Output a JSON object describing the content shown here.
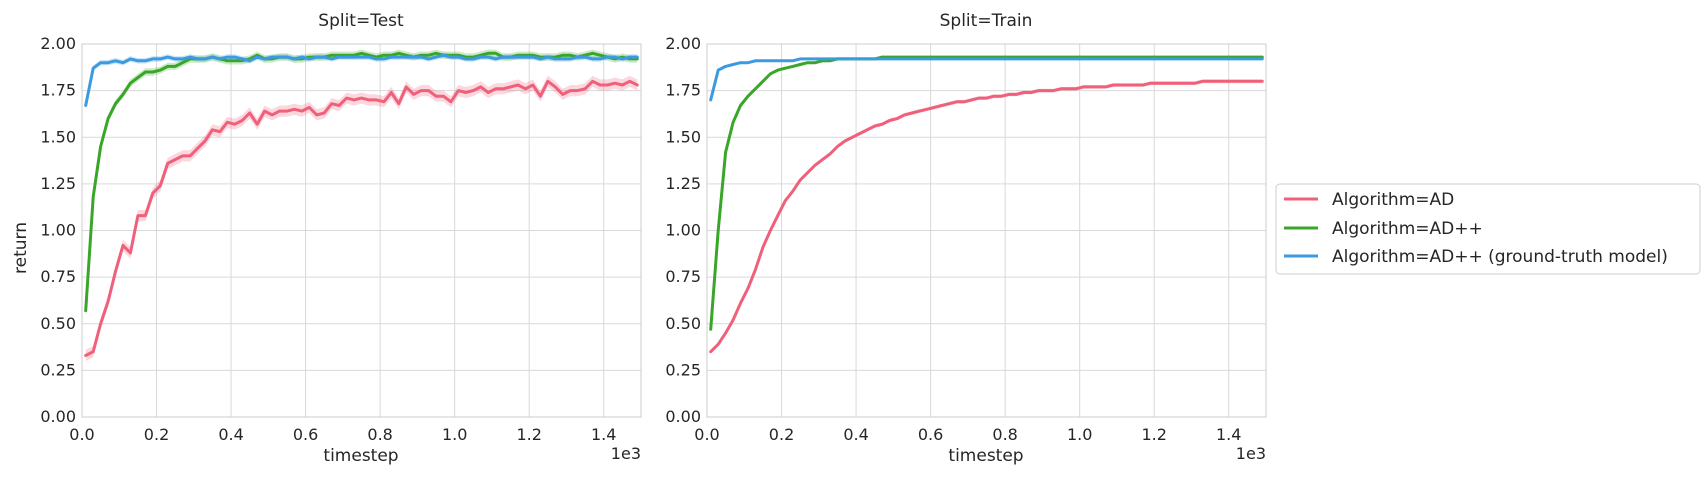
{
  "figure": {
    "ylabel": "return",
    "legend_position": "right",
    "legend": [
      {
        "label": "Algorithm=AD",
        "color": "#f0607a"
      },
      {
        "label": "Algorithm=AD++",
        "color": "#3aa629"
      },
      {
        "label": "Algorithm=AD++ (ground-truth model)",
        "color": "#3a9be0"
      }
    ]
  },
  "chart_data": [
    {
      "type": "line",
      "title": "Split=Test",
      "xlabel": "timestep",
      "x_scale_label": "1e3",
      "xlim": [
        0,
        1.5
      ],
      "ylim": [
        0,
        2.0
      ],
      "xticks": [
        "0.0",
        "0.2",
        "0.4",
        "0.6",
        "0.8",
        "1.0",
        "1.2",
        "1.4"
      ],
      "yticks": [
        "0.00",
        "0.25",
        "0.50",
        "0.75",
        "1.00",
        "1.25",
        "1.50",
        "1.75",
        "2.00"
      ],
      "grid": true,
      "series": [
        {
          "name": "Algorithm=AD",
          "color": "#f0607a",
          "x": [
            0.01,
            0.03,
            0.05,
            0.07,
            0.09,
            0.11,
            0.13,
            0.15,
            0.17,
            0.19,
            0.21,
            0.23,
            0.25,
            0.27,
            0.29,
            0.31,
            0.33,
            0.35,
            0.37,
            0.39,
            0.41,
            0.43,
            0.45,
            0.47,
            0.49,
            0.51,
            0.53,
            0.55,
            0.57,
            0.59,
            0.61,
            0.63,
            0.65,
            0.67,
            0.69,
            0.71,
            0.73,
            0.75,
            0.77,
            0.79,
            0.81,
            0.83,
            0.85,
            0.87,
            0.89,
            0.91,
            0.93,
            0.95,
            0.97,
            0.99,
            1.01,
            1.03,
            1.05,
            1.07,
            1.09,
            1.11,
            1.13,
            1.15,
            1.17,
            1.19,
            1.21,
            1.23,
            1.25,
            1.27,
            1.29,
            1.31,
            1.33,
            1.35,
            1.37,
            1.39,
            1.41,
            1.43,
            1.45,
            1.47,
            1.49
          ],
          "y": [
            0.33,
            0.35,
            0.5,
            0.62,
            0.78,
            0.92,
            0.88,
            1.08,
            1.08,
            1.2,
            1.24,
            1.36,
            1.38,
            1.4,
            1.4,
            1.44,
            1.48,
            1.54,
            1.53,
            1.58,
            1.57,
            1.59,
            1.63,
            1.57,
            1.64,
            1.62,
            1.64,
            1.64,
            1.65,
            1.64,
            1.66,
            1.62,
            1.63,
            1.68,
            1.67,
            1.71,
            1.7,
            1.71,
            1.7,
            1.7,
            1.69,
            1.74,
            1.68,
            1.77,
            1.73,
            1.75,
            1.75,
            1.72,
            1.72,
            1.69,
            1.75,
            1.74,
            1.75,
            1.77,
            1.74,
            1.76,
            1.76,
            1.77,
            1.78,
            1.76,
            1.78,
            1.72,
            1.8,
            1.77,
            1.73,
            1.75,
            1.75,
            1.76,
            1.8,
            1.78,
            1.78,
            1.79,
            1.78,
            1.8,
            1.78
          ],
          "band": 0.03
        },
        {
          "name": "Algorithm=AD++",
          "color": "#3aa629",
          "x": [
            0.01,
            0.03,
            0.05,
            0.07,
            0.09,
            0.11,
            0.13,
            0.15,
            0.17,
            0.19,
            0.21,
            0.23,
            0.25,
            0.27,
            0.29,
            0.31,
            0.33,
            0.35,
            0.37,
            0.39,
            0.41,
            0.43,
            0.45,
            0.47,
            0.49,
            0.51,
            0.53,
            0.55,
            0.57,
            0.59,
            0.61,
            0.63,
            0.65,
            0.67,
            0.69,
            0.71,
            0.73,
            0.75,
            0.77,
            0.79,
            0.81,
            0.83,
            0.85,
            0.87,
            0.89,
            0.91,
            0.93,
            0.95,
            0.97,
            0.99,
            1.01,
            1.03,
            1.05,
            1.07,
            1.09,
            1.11,
            1.13,
            1.15,
            1.17,
            1.19,
            1.21,
            1.23,
            1.25,
            1.27,
            1.29,
            1.31,
            1.33,
            1.35,
            1.37,
            1.39,
            1.41,
            1.43,
            1.45,
            1.47,
            1.49
          ],
          "y": [
            0.57,
            1.18,
            1.45,
            1.6,
            1.68,
            1.73,
            1.79,
            1.82,
            1.85,
            1.85,
            1.86,
            1.88,
            1.88,
            1.9,
            1.92,
            1.92,
            1.92,
            1.93,
            1.92,
            1.91,
            1.91,
            1.91,
            1.92,
            1.94,
            1.92,
            1.92,
            1.93,
            1.93,
            1.92,
            1.92,
            1.93,
            1.93,
            1.93,
            1.94,
            1.94,
            1.94,
            1.94,
            1.95,
            1.94,
            1.93,
            1.94,
            1.94,
            1.95,
            1.94,
            1.93,
            1.94,
            1.94,
            1.95,
            1.94,
            1.94,
            1.94,
            1.93,
            1.93,
            1.94,
            1.95,
            1.95,
            1.93,
            1.93,
            1.94,
            1.94,
            1.94,
            1.93,
            1.93,
            1.93,
            1.94,
            1.94,
            1.93,
            1.94,
            1.95,
            1.94,
            1.93,
            1.92,
            1.93,
            1.92,
            1.92
          ],
          "band": 0.02
        },
        {
          "name": "Algorithm=AD++ (ground-truth model)",
          "color": "#3a9be0",
          "x": [
            0.01,
            0.03,
            0.05,
            0.07,
            0.09,
            0.11,
            0.13,
            0.15,
            0.17,
            0.19,
            0.21,
            0.23,
            0.25,
            0.27,
            0.29,
            0.31,
            0.33,
            0.35,
            0.37,
            0.39,
            0.41,
            0.43,
            0.45,
            0.47,
            0.49,
            0.51,
            0.53,
            0.55,
            0.57,
            0.59,
            0.61,
            0.63,
            0.65,
            0.67,
            0.69,
            0.71,
            0.73,
            0.75,
            0.77,
            0.79,
            0.81,
            0.83,
            0.85,
            0.87,
            0.89,
            0.91,
            0.93,
            0.95,
            0.97,
            0.99,
            1.01,
            1.03,
            1.05,
            1.07,
            1.09,
            1.11,
            1.13,
            1.15,
            1.17,
            1.19,
            1.21,
            1.23,
            1.25,
            1.27,
            1.29,
            1.31,
            1.33,
            1.35,
            1.37,
            1.39,
            1.41,
            1.43,
            1.45,
            1.47,
            1.49
          ],
          "y": [
            1.67,
            1.87,
            1.9,
            1.9,
            1.91,
            1.9,
            1.92,
            1.91,
            1.91,
            1.92,
            1.92,
            1.93,
            1.92,
            1.92,
            1.93,
            1.92,
            1.92,
            1.93,
            1.92,
            1.93,
            1.93,
            1.92,
            1.91,
            1.93,
            1.92,
            1.93,
            1.93,
            1.93,
            1.92,
            1.93,
            1.92,
            1.93,
            1.93,
            1.92,
            1.93,
            1.93,
            1.93,
            1.93,
            1.93,
            1.92,
            1.92,
            1.93,
            1.93,
            1.93,
            1.93,
            1.93,
            1.92,
            1.93,
            1.94,
            1.93,
            1.93,
            1.92,
            1.92,
            1.93,
            1.93,
            1.92,
            1.93,
            1.93,
            1.93,
            1.93,
            1.93,
            1.92,
            1.93,
            1.92,
            1.92,
            1.92,
            1.93,
            1.93,
            1.92,
            1.92,
            1.93,
            1.93,
            1.92,
            1.93,
            1.93
          ],
          "band": 0.015
        }
      ]
    },
    {
      "type": "line",
      "title": "Split=Train",
      "xlabel": "timestep",
      "x_scale_label": "1e3",
      "xlim": [
        0,
        1.5
      ],
      "ylim": [
        0,
        2.0
      ],
      "xticks": [
        "0.0",
        "0.2",
        "0.4",
        "0.6",
        "0.8",
        "1.0",
        "1.2",
        "1.4"
      ],
      "yticks": [
        "0.00",
        "0.25",
        "0.50",
        "0.75",
        "1.00",
        "1.25",
        "1.50",
        "1.75",
        "2.00"
      ],
      "grid": true,
      "series": [
        {
          "name": "Algorithm=AD",
          "color": "#f0607a",
          "x": [
            0.01,
            0.03,
            0.05,
            0.07,
            0.09,
            0.11,
            0.13,
            0.15,
            0.17,
            0.19,
            0.21,
            0.23,
            0.25,
            0.27,
            0.29,
            0.31,
            0.33,
            0.35,
            0.37,
            0.39,
            0.41,
            0.43,
            0.45,
            0.47,
            0.49,
            0.51,
            0.53,
            0.55,
            0.57,
            0.59,
            0.61,
            0.63,
            0.65,
            0.67,
            0.69,
            0.71,
            0.73,
            0.75,
            0.77,
            0.79,
            0.81,
            0.83,
            0.85,
            0.87,
            0.89,
            0.91,
            0.93,
            0.95,
            0.97,
            0.99,
            1.01,
            1.03,
            1.05,
            1.07,
            1.09,
            1.11,
            1.13,
            1.15,
            1.17,
            1.19,
            1.21,
            1.23,
            1.25,
            1.27,
            1.29,
            1.31,
            1.33,
            1.35,
            1.37,
            1.39,
            1.41,
            1.43,
            1.45,
            1.47,
            1.49
          ],
          "y": [
            0.35,
            0.39,
            0.45,
            0.52,
            0.61,
            0.69,
            0.79,
            0.91,
            1.0,
            1.08,
            1.16,
            1.21,
            1.27,
            1.31,
            1.35,
            1.38,
            1.41,
            1.45,
            1.48,
            1.5,
            1.52,
            1.54,
            1.56,
            1.57,
            1.59,
            1.6,
            1.62,
            1.63,
            1.64,
            1.65,
            1.66,
            1.67,
            1.68,
            1.69,
            1.69,
            1.7,
            1.71,
            1.71,
            1.72,
            1.72,
            1.73,
            1.73,
            1.74,
            1.74,
            1.75,
            1.75,
            1.75,
            1.76,
            1.76,
            1.76,
            1.77,
            1.77,
            1.77,
            1.77,
            1.78,
            1.78,
            1.78,
            1.78,
            1.78,
            1.79,
            1.79,
            1.79,
            1.79,
            1.79,
            1.79,
            1.79,
            1.8,
            1.8,
            1.8,
            1.8,
            1.8,
            1.8,
            1.8,
            1.8,
            1.8
          ],
          "band": 0.01
        },
        {
          "name": "Algorithm=AD++",
          "color": "#3aa629",
          "x": [
            0.01,
            0.03,
            0.05,
            0.07,
            0.09,
            0.11,
            0.13,
            0.15,
            0.17,
            0.19,
            0.21,
            0.23,
            0.25,
            0.27,
            0.29,
            0.31,
            0.33,
            0.35,
            0.37,
            0.39,
            0.41,
            0.43,
            0.45,
            0.47,
            0.49,
            0.51,
            0.53,
            0.55,
            0.57,
            0.59,
            0.61,
            0.63,
            0.65,
            0.67,
            0.69,
            0.71,
            0.73,
            0.75,
            0.77,
            0.79,
            0.81,
            0.83,
            0.85,
            0.87,
            0.89,
            0.91,
            0.93,
            0.95,
            0.97,
            0.99,
            1.01,
            1.03,
            1.05,
            1.07,
            1.09,
            1.11,
            1.13,
            1.15,
            1.17,
            1.19,
            1.21,
            1.23,
            1.25,
            1.27,
            1.29,
            1.31,
            1.33,
            1.35,
            1.37,
            1.39,
            1.41,
            1.43,
            1.45,
            1.47,
            1.49
          ],
          "y": [
            0.47,
            1.0,
            1.42,
            1.58,
            1.67,
            1.72,
            1.76,
            1.8,
            1.84,
            1.86,
            1.87,
            1.88,
            1.89,
            1.9,
            1.9,
            1.91,
            1.91,
            1.92,
            1.92,
            1.92,
            1.92,
            1.92,
            1.92,
            1.93,
            1.93,
            1.93,
            1.93,
            1.93,
            1.93,
            1.93,
            1.93,
            1.93,
            1.93,
            1.93,
            1.93,
            1.93,
            1.93,
            1.93,
            1.93,
            1.93,
            1.93,
            1.93,
            1.93,
            1.93,
            1.93,
            1.93,
            1.93,
            1.93,
            1.93,
            1.93,
            1.93,
            1.93,
            1.93,
            1.93,
            1.93,
            1.93,
            1.93,
            1.93,
            1.93,
            1.93,
            1.93,
            1.93,
            1.93,
            1.93,
            1.93,
            1.93,
            1.93,
            1.93,
            1.93,
            1.93,
            1.93,
            1.93,
            1.93,
            1.93,
            1.93
          ],
          "band": 0.008
        },
        {
          "name": "Algorithm=AD++ (ground-truth model)",
          "color": "#3a9be0",
          "x": [
            0.01,
            0.03,
            0.05,
            0.07,
            0.09,
            0.11,
            0.13,
            0.15,
            0.17,
            0.19,
            0.21,
            0.23,
            0.25,
            0.27,
            0.29,
            0.31,
            0.33,
            0.35,
            0.37,
            0.39,
            0.41,
            0.43,
            0.45,
            0.47,
            0.49,
            0.51,
            0.53,
            0.55,
            0.57,
            0.59,
            0.61,
            0.63,
            0.65,
            0.67,
            0.69,
            0.71,
            0.73,
            0.75,
            0.77,
            0.79,
            0.81,
            0.83,
            0.85,
            0.87,
            0.89,
            0.91,
            0.93,
            0.95,
            0.97,
            0.99,
            1.01,
            1.03,
            1.05,
            1.07,
            1.09,
            1.11,
            1.13,
            1.15,
            1.17,
            1.19,
            1.21,
            1.23,
            1.25,
            1.27,
            1.29,
            1.31,
            1.33,
            1.35,
            1.37,
            1.39,
            1.41,
            1.43,
            1.45,
            1.47,
            1.49
          ],
          "y": [
            1.7,
            1.86,
            1.88,
            1.89,
            1.9,
            1.9,
            1.91,
            1.91,
            1.91,
            1.91,
            1.91,
            1.91,
            1.92,
            1.92,
            1.92,
            1.92,
            1.92,
            1.92,
            1.92,
            1.92,
            1.92,
            1.92,
            1.92,
            1.92,
            1.92,
            1.92,
            1.92,
            1.92,
            1.92,
            1.92,
            1.92,
            1.92,
            1.92,
            1.92,
            1.92,
            1.92,
            1.92,
            1.92,
            1.92,
            1.92,
            1.92,
            1.92,
            1.92,
            1.92,
            1.92,
            1.92,
            1.92,
            1.92,
            1.92,
            1.92,
            1.92,
            1.92,
            1.92,
            1.92,
            1.92,
            1.92,
            1.92,
            1.92,
            1.92,
            1.92,
            1.92,
            1.92,
            1.92,
            1.92,
            1.92,
            1.92,
            1.92,
            1.92,
            1.92,
            1.92,
            1.92,
            1.92,
            1.92,
            1.92,
            1.92
          ],
          "band": 0.006
        }
      ]
    }
  ]
}
